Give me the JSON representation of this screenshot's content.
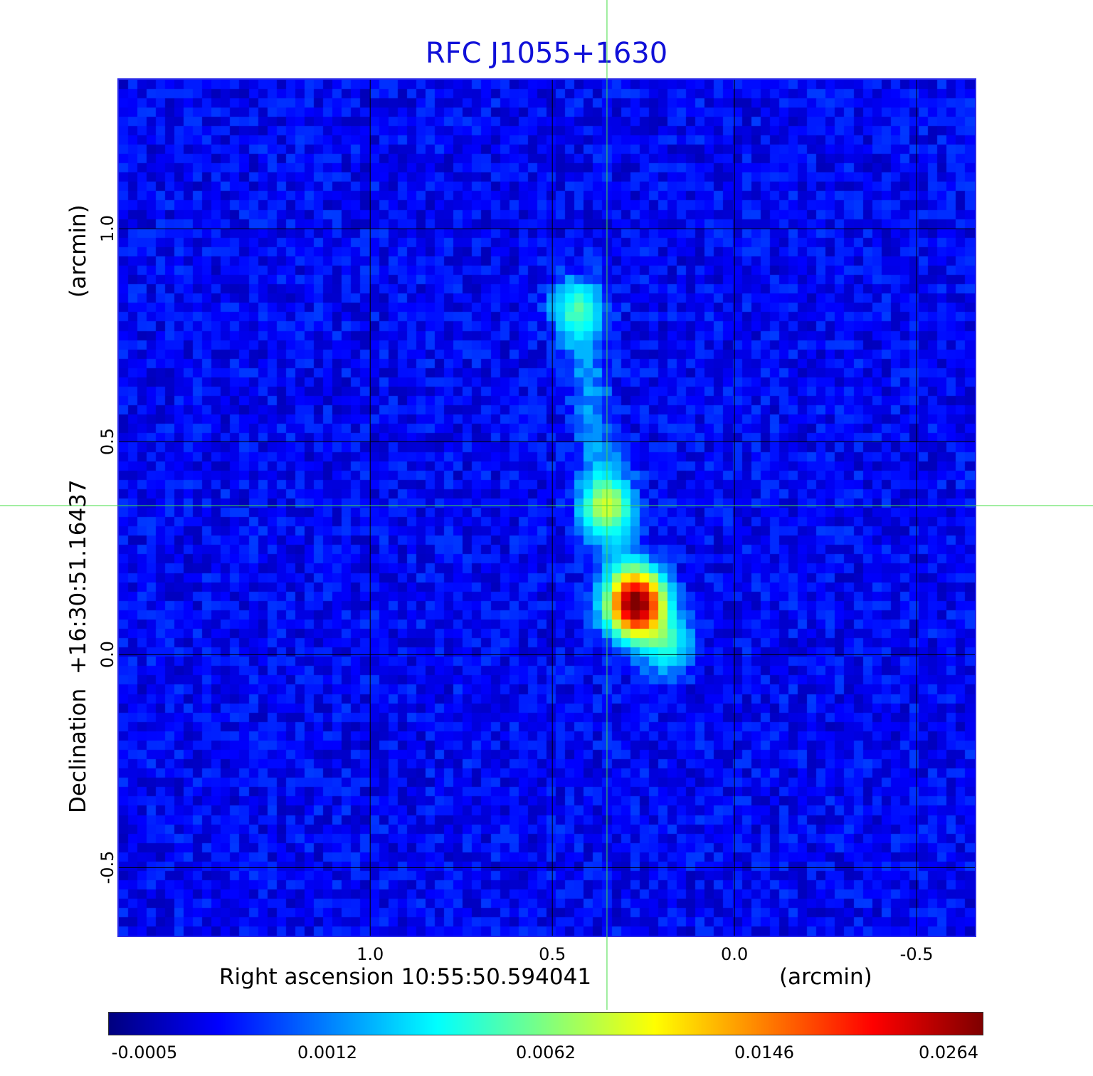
{
  "chart_data": {
    "type": "heatmap",
    "title": "RFC J1055+1630",
    "xlabel": "Right ascension  10:55:50.594041",
    "xunit": "(arcmin)",
    "ylabel": "Declination  +16:30:51.16437",
    "yunit": "(arcmin)",
    "xlim": [
      1.69,
      -0.66
    ],
    "ylim": [
      -0.66,
      1.35
    ],
    "x_ticks": [
      "1.0",
      "0.5",
      "0.0",
      "-0.5"
    ],
    "x_tick_values": [
      1.0,
      0.5,
      0.0,
      -0.5
    ],
    "y_ticks": [
      "-0.5",
      "0.0",
      "0.5",
      "1.0"
    ],
    "y_tick_values": [
      -0.5,
      0.0,
      0.5,
      1.0
    ],
    "grid": true,
    "crosshair": {
      "x": 0.35,
      "y": 0.35,
      "color": "#44dd44"
    },
    "colormap": "jet",
    "colorbar_ticks": [
      "-0.0005",
      "0.0012",
      "0.0062",
      "0.0146",
      "0.0264"
    ],
    "colorbar_tick_values": [
      -0.0005,
      0.0012,
      0.0062,
      0.0146,
      0.0264
    ],
    "sources": [
      {
        "x": 0.27,
        "y": 0.12,
        "peak": 0.0264
      },
      {
        "x": 0.35,
        "y": 0.35,
        "peak": 0.0055
      },
      {
        "x": 0.43,
        "y": 0.81,
        "peak": 0.0035
      },
      {
        "x": 0.19,
        "y": 0.03,
        "peak": 0.003
      }
    ]
  }
}
